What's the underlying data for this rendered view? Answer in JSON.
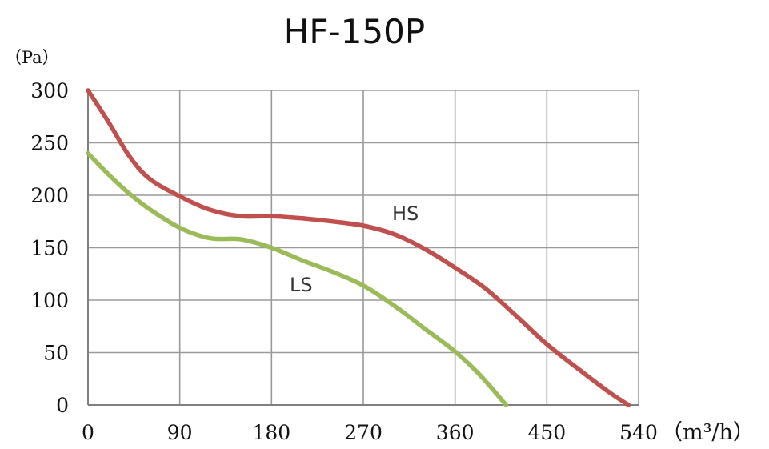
{
  "chart_data": {
    "type": "line",
    "title": "HF-150P",
    "xlabel": "（m³/h）",
    "ylabel": "（Pa）",
    "xlim": [
      0,
      540
    ],
    "ylim": [
      0,
      300
    ],
    "x_ticks": [
      0,
      90,
      180,
      270,
      360,
      450,
      540
    ],
    "y_ticks": [
      0,
      50,
      100,
      150,
      200,
      250,
      300
    ],
    "grid": true,
    "series": [
      {
        "name": "HS",
        "color": "#c0504d",
        "x": [
          0,
          20,
          40,
          60,
          90,
          120,
          150,
          180,
          210,
          240,
          270,
          300,
          330,
          360,
          390,
          420,
          450,
          480,
          510,
          530
        ],
        "y": [
          300,
          270,
          238,
          216,
          199,
          186,
          180,
          180,
          178,
          175,
          171,
          163,
          149,
          131,
          111,
          85,
          58,
          35,
          13,
          0
        ]
      },
      {
        "name": "LS",
        "color": "#9bbb59",
        "x": [
          0,
          20,
          40,
          60,
          90,
          120,
          150,
          180,
          210,
          240,
          270,
          300,
          330,
          360,
          385,
          410
        ],
        "y": [
          240,
          220,
          202,
          187,
          169,
          159,
          158,
          150,
          138,
          127,
          114,
          95,
          73,
          51,
          28,
          0
        ]
      }
    ],
    "annotations": [
      "HS",
      "LS"
    ]
  }
}
